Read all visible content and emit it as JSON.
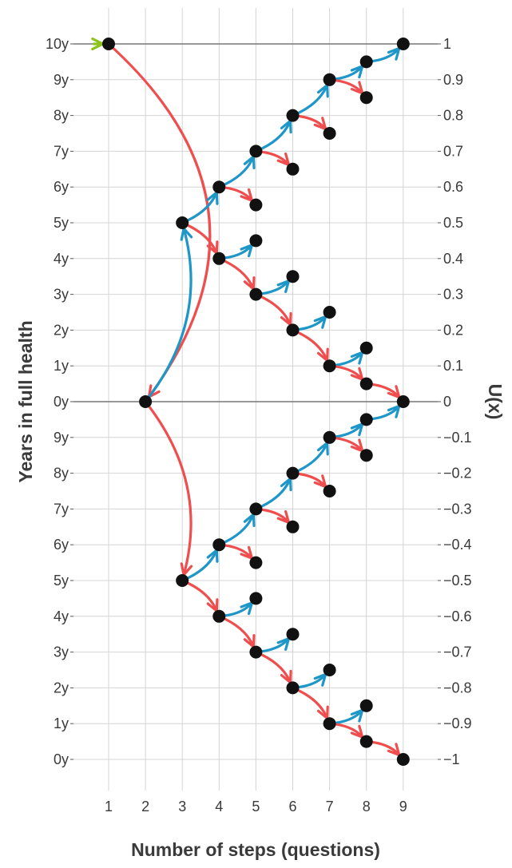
{
  "chart_data": {
    "type": "scatter",
    "xlabel": "Number of steps (questions)",
    "ylabel": "Years in full health",
    "y2label": "U(x)",
    "x_ticks": [
      "1",
      "2",
      "3",
      "4",
      "5",
      "6",
      "7",
      "8",
      "9"
    ],
    "xlim": [
      0,
      10.5
    ],
    "ylim": [
      -1.2,
      1.1
    ],
    "y_left_ticks": [
      {
        "value": 1.0,
        "label": "10y"
      },
      {
        "value": 0.9,
        "label": "9y"
      },
      {
        "value": 0.8,
        "label": "8y"
      },
      {
        "value": 0.7,
        "label": "7y"
      },
      {
        "value": 0.6,
        "label": "6y"
      },
      {
        "value": 0.5,
        "label": "5y"
      },
      {
        "value": 0.4,
        "label": "4y"
      },
      {
        "value": 0.3,
        "label": "3y"
      },
      {
        "value": 0.2,
        "label": "2y"
      },
      {
        "value": 0.1,
        "label": "1y"
      },
      {
        "value": 0.0,
        "label": "0y"
      },
      {
        "value": -0.1,
        "label": "9y"
      },
      {
        "value": -0.2,
        "label": "8y"
      },
      {
        "value": -0.3,
        "label": "7y"
      },
      {
        "value": -0.4,
        "label": "6y"
      },
      {
        "value": -0.5,
        "label": "5y"
      },
      {
        "value": -0.6,
        "label": "4y"
      },
      {
        "value": -0.7,
        "label": "3y"
      },
      {
        "value": -0.8,
        "label": "2y"
      },
      {
        "value": -0.9,
        "label": "1y"
      },
      {
        "value": -1.0,
        "label": "0y"
      }
    ],
    "y_right_ticks": [
      {
        "value": 1.0,
        "label": "1"
      },
      {
        "value": 0.9,
        "label": "0.9"
      },
      {
        "value": 0.8,
        "label": "0.8"
      },
      {
        "value": 0.7,
        "label": "0.7"
      },
      {
        "value": 0.6,
        "label": "0.6"
      },
      {
        "value": 0.5,
        "label": "0.5"
      },
      {
        "value": 0.4,
        "label": "0.4"
      },
      {
        "value": 0.3,
        "label": "0.3"
      },
      {
        "value": 0.2,
        "label": "0.2"
      },
      {
        "value": 0.1,
        "label": "0.1"
      },
      {
        "value": 0.0,
        "label": "0"
      },
      {
        "value": -0.1,
        "label": "−0.1"
      },
      {
        "value": -0.2,
        "label": "−0.2"
      },
      {
        "value": -0.3,
        "label": "−0.3"
      },
      {
        "value": -0.4,
        "label": "−0.4"
      },
      {
        "value": -0.5,
        "label": "−0.5"
      },
      {
        "value": -0.6,
        "label": "−0.6"
      },
      {
        "value": -0.7,
        "label": "−0.7"
      },
      {
        "value": -0.8,
        "label": "−0.8"
      },
      {
        "value": -0.9,
        "label": "−0.9"
      },
      {
        "value": -1.0,
        "label": "−1"
      }
    ],
    "hlines": [
      1.0,
      0.0
    ],
    "grid": true,
    "colors": {
      "up": "#1f96c8",
      "down": "#f04e4e",
      "start": "#8cc21b",
      "point": "#111111",
      "grid": "#d4d4d4",
      "hline": "#777777"
    },
    "points": [
      {
        "x": 1,
        "y": 1.0
      },
      {
        "x": 2,
        "y": 0.0
      },
      {
        "x": 3,
        "y": 0.5
      },
      {
        "x": 3,
        "y": -0.5
      },
      {
        "x": 4,
        "y": 0.6
      },
      {
        "x": 4,
        "y": 0.4
      },
      {
        "x": 4,
        "y": -0.4
      },
      {
        "x": 4,
        "y": -0.6
      },
      {
        "x": 5,
        "y": 0.7
      },
      {
        "x": 5,
        "y": 0.55
      },
      {
        "x": 5,
        "y": 0.45
      },
      {
        "x": 5,
        "y": 0.3
      },
      {
        "x": 5,
        "y": -0.3
      },
      {
        "x": 5,
        "y": -0.45
      },
      {
        "x": 5,
        "y": -0.55
      },
      {
        "x": 5,
        "y": -0.7
      },
      {
        "x": 6,
        "y": 0.8
      },
      {
        "x": 6,
        "y": 0.65
      },
      {
        "x": 6,
        "y": 0.35
      },
      {
        "x": 6,
        "y": 0.2
      },
      {
        "x": 6,
        "y": -0.2
      },
      {
        "x": 6,
        "y": -0.35
      },
      {
        "x": 6,
        "y": -0.65
      },
      {
        "x": 6,
        "y": -0.8
      },
      {
        "x": 7,
        "y": 0.9
      },
      {
        "x": 7,
        "y": 0.75
      },
      {
        "x": 7,
        "y": 0.25
      },
      {
        "x": 7,
        "y": 0.1
      },
      {
        "x": 7,
        "y": -0.1
      },
      {
        "x": 7,
        "y": -0.25
      },
      {
        "x": 7,
        "y": -0.75
      },
      {
        "x": 7,
        "y": -0.9
      },
      {
        "x": 8,
        "y": 0.95
      },
      {
        "x": 8,
        "y": 0.85
      },
      {
        "x": 8,
        "y": 0.15
      },
      {
        "x": 8,
        "y": 0.05
      },
      {
        "x": 8,
        "y": -0.05
      },
      {
        "x": 8,
        "y": -0.15
      },
      {
        "x": 8,
        "y": -0.85
      },
      {
        "x": 8,
        "y": -0.95
      },
      {
        "x": 9,
        "y": 1.0
      },
      {
        "x": 9,
        "y": 0.0
      },
      {
        "x": 9,
        "y": -1.0
      }
    ],
    "start_arrow": {
      "from": [
        0.6,
        1.0
      ],
      "to": [
        1,
        1.0
      ]
    },
    "arrows": [
      {
        "from": [
          1,
          1.0
        ],
        "to": [
          2,
          0.0
        ],
        "dir": "down",
        "curve": -0.45
      },
      {
        "from": [
          2,
          0.0
        ],
        "to": [
          3,
          0.5
        ],
        "dir": "up",
        "curve": 0.25
      },
      {
        "from": [
          2,
          0.0
        ],
        "to": [
          3,
          -0.5
        ],
        "dir": "down",
        "curve": -0.25
      },
      {
        "from": [
          3,
          0.5
        ],
        "to": [
          4,
          0.6
        ],
        "dir": "up",
        "curve": 0.2
      },
      {
        "from": [
          3,
          0.5
        ],
        "to": [
          4,
          0.4
        ],
        "dir": "down",
        "curve": -0.2
      },
      {
        "from": [
          4,
          0.6
        ],
        "to": [
          5,
          0.7
        ],
        "dir": "up",
        "curve": 0.2
      },
      {
        "from": [
          4,
          0.6
        ],
        "to": [
          5,
          0.55
        ],
        "dir": "down",
        "curve": -0.2
      },
      {
        "from": [
          4,
          0.4
        ],
        "to": [
          5,
          0.45
        ],
        "dir": "up",
        "curve": 0.2
      },
      {
        "from": [
          4,
          0.4
        ],
        "to": [
          5,
          0.3
        ],
        "dir": "down",
        "curve": -0.2
      },
      {
        "from": [
          5,
          0.7
        ],
        "to": [
          6,
          0.8
        ],
        "dir": "up",
        "curve": 0.2
      },
      {
        "from": [
          5,
          0.7
        ],
        "to": [
          6,
          0.65
        ],
        "dir": "down",
        "curve": -0.2
      },
      {
        "from": [
          5,
          0.3
        ],
        "to": [
          6,
          0.35
        ],
        "dir": "up",
        "curve": 0.2
      },
      {
        "from": [
          5,
          0.3
        ],
        "to": [
          6,
          0.2
        ],
        "dir": "down",
        "curve": -0.2
      },
      {
        "from": [
          6,
          0.8
        ],
        "to": [
          7,
          0.9
        ],
        "dir": "up",
        "curve": 0.2
      },
      {
        "from": [
          6,
          0.8
        ],
        "to": [
          7,
          0.75
        ],
        "dir": "down",
        "curve": -0.2
      },
      {
        "from": [
          6,
          0.2
        ],
        "to": [
          7,
          0.25
        ],
        "dir": "up",
        "curve": 0.2
      },
      {
        "from": [
          6,
          0.2
        ],
        "to": [
          7,
          0.1
        ],
        "dir": "down",
        "curve": -0.2
      },
      {
        "from": [
          7,
          0.9
        ],
        "to": [
          8,
          0.95
        ],
        "dir": "up",
        "curve": 0.2
      },
      {
        "from": [
          7,
          0.9
        ],
        "to": [
          8,
          0.85
        ],
        "dir": "down",
        "curve": -0.2
      },
      {
        "from": [
          7,
          0.1
        ],
        "to": [
          8,
          0.15
        ],
        "dir": "up",
        "curve": 0.2
      },
      {
        "from": [
          7,
          0.1
        ],
        "to": [
          8,
          0.05
        ],
        "dir": "down",
        "curve": -0.2
      },
      {
        "from": [
          8,
          0.95
        ],
        "to": [
          9,
          1.0
        ],
        "dir": "up",
        "curve": 0.2
      },
      {
        "from": [
          8,
          0.05
        ],
        "to": [
          9,
          0.0
        ],
        "dir": "down",
        "curve": -0.2
      },
      {
        "from": [
          3,
          -0.5
        ],
        "to": [
          4,
          -0.4
        ],
        "dir": "up",
        "curve": 0.2
      },
      {
        "from": [
          3,
          -0.5
        ],
        "to": [
          4,
          -0.6
        ],
        "dir": "down",
        "curve": -0.2
      },
      {
        "from": [
          4,
          -0.4
        ],
        "to": [
          5,
          -0.3
        ],
        "dir": "up",
        "curve": 0.2
      },
      {
        "from": [
          4,
          -0.4
        ],
        "to": [
          5,
          -0.45
        ],
        "dir": "down",
        "curve": -0.2
      },
      {
        "from": [
          4,
          -0.6
        ],
        "to": [
          5,
          -0.55
        ],
        "dir": "up",
        "curve": 0.2
      },
      {
        "from": [
          4,
          -0.6
        ],
        "to": [
          5,
          -0.7
        ],
        "dir": "down",
        "curve": -0.2
      },
      {
        "from": [
          5,
          -0.3
        ],
        "to": [
          6,
          -0.2
        ],
        "dir": "up",
        "curve": 0.2
      },
      {
        "from": [
          5,
          -0.3
        ],
        "to": [
          6,
          -0.35
        ],
        "dir": "down",
        "curve": -0.2
      },
      {
        "from": [
          5,
          -0.7
        ],
        "to": [
          6,
          -0.65
        ],
        "dir": "up",
        "curve": 0.2
      },
      {
        "from": [
          5,
          -0.7
        ],
        "to": [
          6,
          -0.8
        ],
        "dir": "down",
        "curve": -0.2
      },
      {
        "from": [
          6,
          -0.2
        ],
        "to": [
          7,
          -0.1
        ],
        "dir": "up",
        "curve": 0.2
      },
      {
        "from": [
          6,
          -0.2
        ],
        "to": [
          7,
          -0.25
        ],
        "dir": "down",
        "curve": -0.2
      },
      {
        "from": [
          6,
          -0.8
        ],
        "to": [
          7,
          -0.75
        ],
        "dir": "up",
        "curve": 0.2
      },
      {
        "from": [
          6,
          -0.8
        ],
        "to": [
          7,
          -0.9
        ],
        "dir": "down",
        "curve": -0.2
      },
      {
        "from": [
          7,
          -0.1
        ],
        "to": [
          8,
          -0.05
        ],
        "dir": "up",
        "curve": 0.2
      },
      {
        "from": [
          7,
          -0.1
        ],
        "to": [
          8,
          -0.15
        ],
        "dir": "down",
        "curve": -0.2
      },
      {
        "from": [
          7,
          -0.9
        ],
        "to": [
          8,
          -0.85
        ],
        "dir": "up",
        "curve": 0.2
      },
      {
        "from": [
          7,
          -0.9
        ],
        "to": [
          8,
          -0.95
        ],
        "dir": "down",
        "curve": -0.2
      },
      {
        "from": [
          8,
          -0.05
        ],
        "to": [
          9,
          0.0
        ],
        "dir": "up",
        "curve": 0.2
      },
      {
        "from": [
          8,
          -0.95
        ],
        "to": [
          9,
          -1.0
        ],
        "dir": "down",
        "curve": -0.2
      }
    ]
  }
}
